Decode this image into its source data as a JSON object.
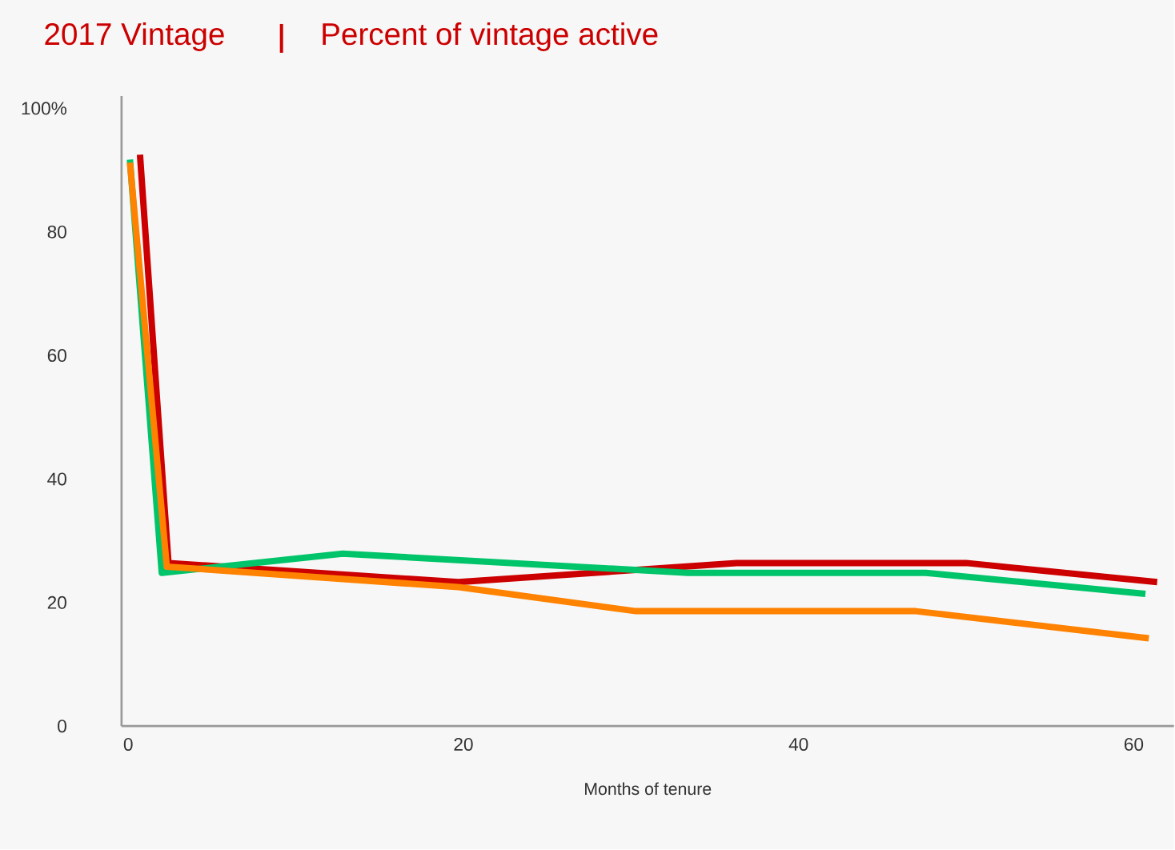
{
  "chart_data": {
    "type": "line",
    "title": "2017 Vintage",
    "subtitle": "Percent of vintage active",
    "xlabel": "Months of tenure",
    "xlim": [
      -0.4,
      62.4
    ],
    "ylim": [
      0,
      102
    ],
    "xticks": [
      0,
      20,
      40,
      60
    ],
    "yticks": [
      0,
      20,
      40,
      60,
      80,
      {
        "value": 100,
        "label": "100%"
      }
    ],
    "grid": false,
    "marker": "none",
    "line_style": "solid",
    "series": [
      {
        "color": "#cc0000",
        "x": [
          0.7,
          2.4,
          19.7,
          36.3,
          50,
          61.4
        ],
        "values": [
          92.5,
          26.4,
          23.3,
          26.4,
          26.4,
          23.3
        ]
      },
      {
        "color": "#00c46a",
        "x": [
          0.1,
          2,
          12.8,
          33.4,
          47.6,
          60.7
        ],
        "values": [
          91.7,
          24.8,
          27.9,
          24.8,
          24.8,
          21.4
        ]
      },
      {
        "color": "#ff8200",
        "x": [
          0.1,
          2.3,
          19.7,
          30.3,
          47,
          60.9
        ],
        "values": [
          91.2,
          25.8,
          22.5,
          18.6,
          18.6,
          14.2
        ]
      }
    ]
  }
}
